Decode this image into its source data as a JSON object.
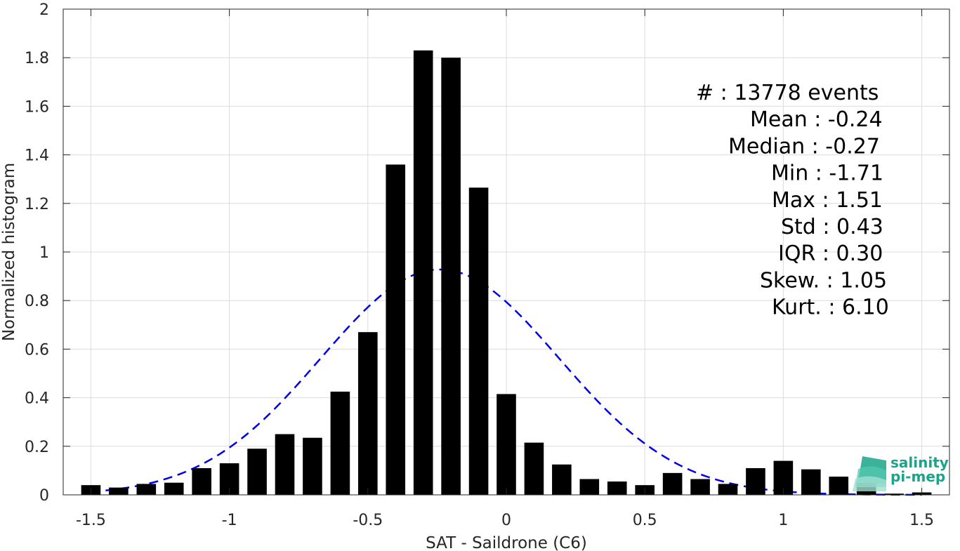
{
  "chart_data": {
    "type": "bar",
    "title": "",
    "xlabel": "SAT - Saildrone (C6)",
    "ylabel": "Normalized histogram",
    "xlim": [
      -1.6,
      1.6
    ],
    "ylim": [
      0,
      2
    ],
    "xticks": [
      -1.5,
      -1,
      -0.5,
      0,
      0.5,
      1,
      1.5
    ],
    "xtick_labels": [
      "-1.5",
      "-1",
      "-0.5",
      "0",
      "0.5",
      "1",
      "1.5"
    ],
    "yticks": [
      0,
      0.2,
      0.4,
      0.6,
      0.8,
      1,
      1.2,
      1.4,
      1.6,
      1.8,
      2
    ],
    "ytick_labels": [
      "0",
      "0.2",
      "0.4",
      "0.6",
      "0.8",
      "1",
      "1.2",
      "1.4",
      "1.6",
      "1.8",
      "2"
    ],
    "grid": true,
    "bar_width": 0.07,
    "bar_color": "#000000",
    "bins": [
      -1.5,
      -1.4,
      -1.3,
      -1.2,
      -1.1,
      -1.0,
      -0.9,
      -0.8,
      -0.7,
      -0.6,
      -0.5,
      -0.4,
      -0.3,
      -0.2,
      -0.1,
      0.0,
      0.1,
      0.2,
      0.3,
      0.4,
      0.5,
      0.6,
      0.7,
      0.8,
      0.9,
      1.0,
      1.1,
      1.2,
      1.3,
      1.4,
      1.5
    ],
    "values": [
      0.04,
      0.03,
      0.045,
      0.05,
      0.11,
      0.13,
      0.19,
      0.25,
      0.235,
      0.425,
      0.67,
      1.36,
      1.83,
      1.8,
      1.265,
      0.415,
      0.215,
      0.125,
      0.065,
      0.055,
      0.04,
      0.09,
      0.065,
      0.045,
      0.11,
      0.14,
      0.105,
      0.075,
      0.05,
      0.005,
      0.01
    ],
    "fit_curve": {
      "type": "gaussian",
      "mean": -0.24,
      "std": 0.43,
      "x_range": [
        -1.5,
        1.5
      ],
      "color": "#0000ee",
      "style": "dashed"
    },
    "stats": [
      "#  : 13778 events",
      "Mean : -0.24",
      "Median : -0.27",
      "Min : -1.71",
      "Max : 1.51",
      "Std : 0.43",
      "IQR : 0.30",
      "Skew. : 1.05",
      "Kurt. : 6.10"
    ]
  },
  "logo": {
    "line1": "salinity",
    "line2": "pi-mep",
    "color": "#1aa58a"
  }
}
